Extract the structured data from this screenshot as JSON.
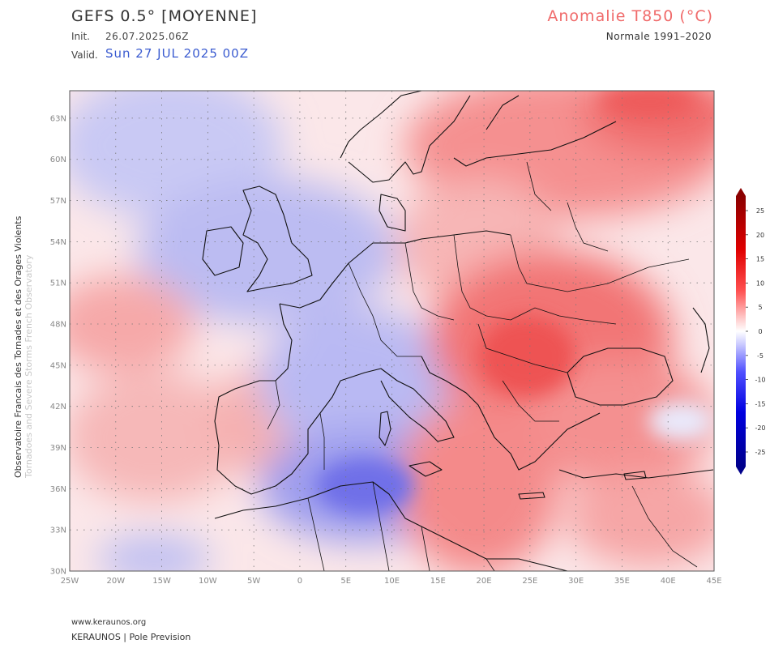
{
  "header": {
    "model": "GEFS 0.5° [MOYENNE]",
    "init_label": "Init.",
    "init_value": "26.07.2025.06Z",
    "valid_label": "Valid.",
    "valid_value": "Sun 27 JUL 2025 00Z",
    "variable": "Anomalie T850 (°C)",
    "normale": "Normale 1991–2020"
  },
  "side_text": {
    "line1": "Observatoire Francais des Tornades et des Orages Violents",
    "line2": "Tornadoes and Severe Storms French Observatory"
  },
  "footer": {
    "url": "www.keraunos.org",
    "brand": "KERAUNOS | Pole Prevision"
  },
  "axes": {
    "lat_ticks": [
      "63N",
      "60N",
      "57N",
      "54N",
      "51N",
      "48N",
      "45N",
      "42N",
      "39N",
      "36N",
      "33N",
      "30N"
    ],
    "lon_ticks": [
      "25W",
      "20W",
      "15W",
      "10W",
      "5W",
      "0",
      "5E",
      "10E",
      "15E",
      "20E",
      "25E",
      "30E",
      "35E",
      "40E",
      "45E"
    ]
  },
  "colorbar": {
    "ticks": [
      "25",
      "20",
      "15",
      "10",
      "5",
      "0",
      "-5",
      "-10",
      "-15",
      "-20",
      "-25"
    ],
    "max_color": "#8b0000",
    "min_color": "#00008b"
  },
  "colors": {
    "warm": "#f04848",
    "cold": "#3e46e0",
    "valid": "#3a5bd0",
    "variable_title": "#f06a6a"
  }
}
